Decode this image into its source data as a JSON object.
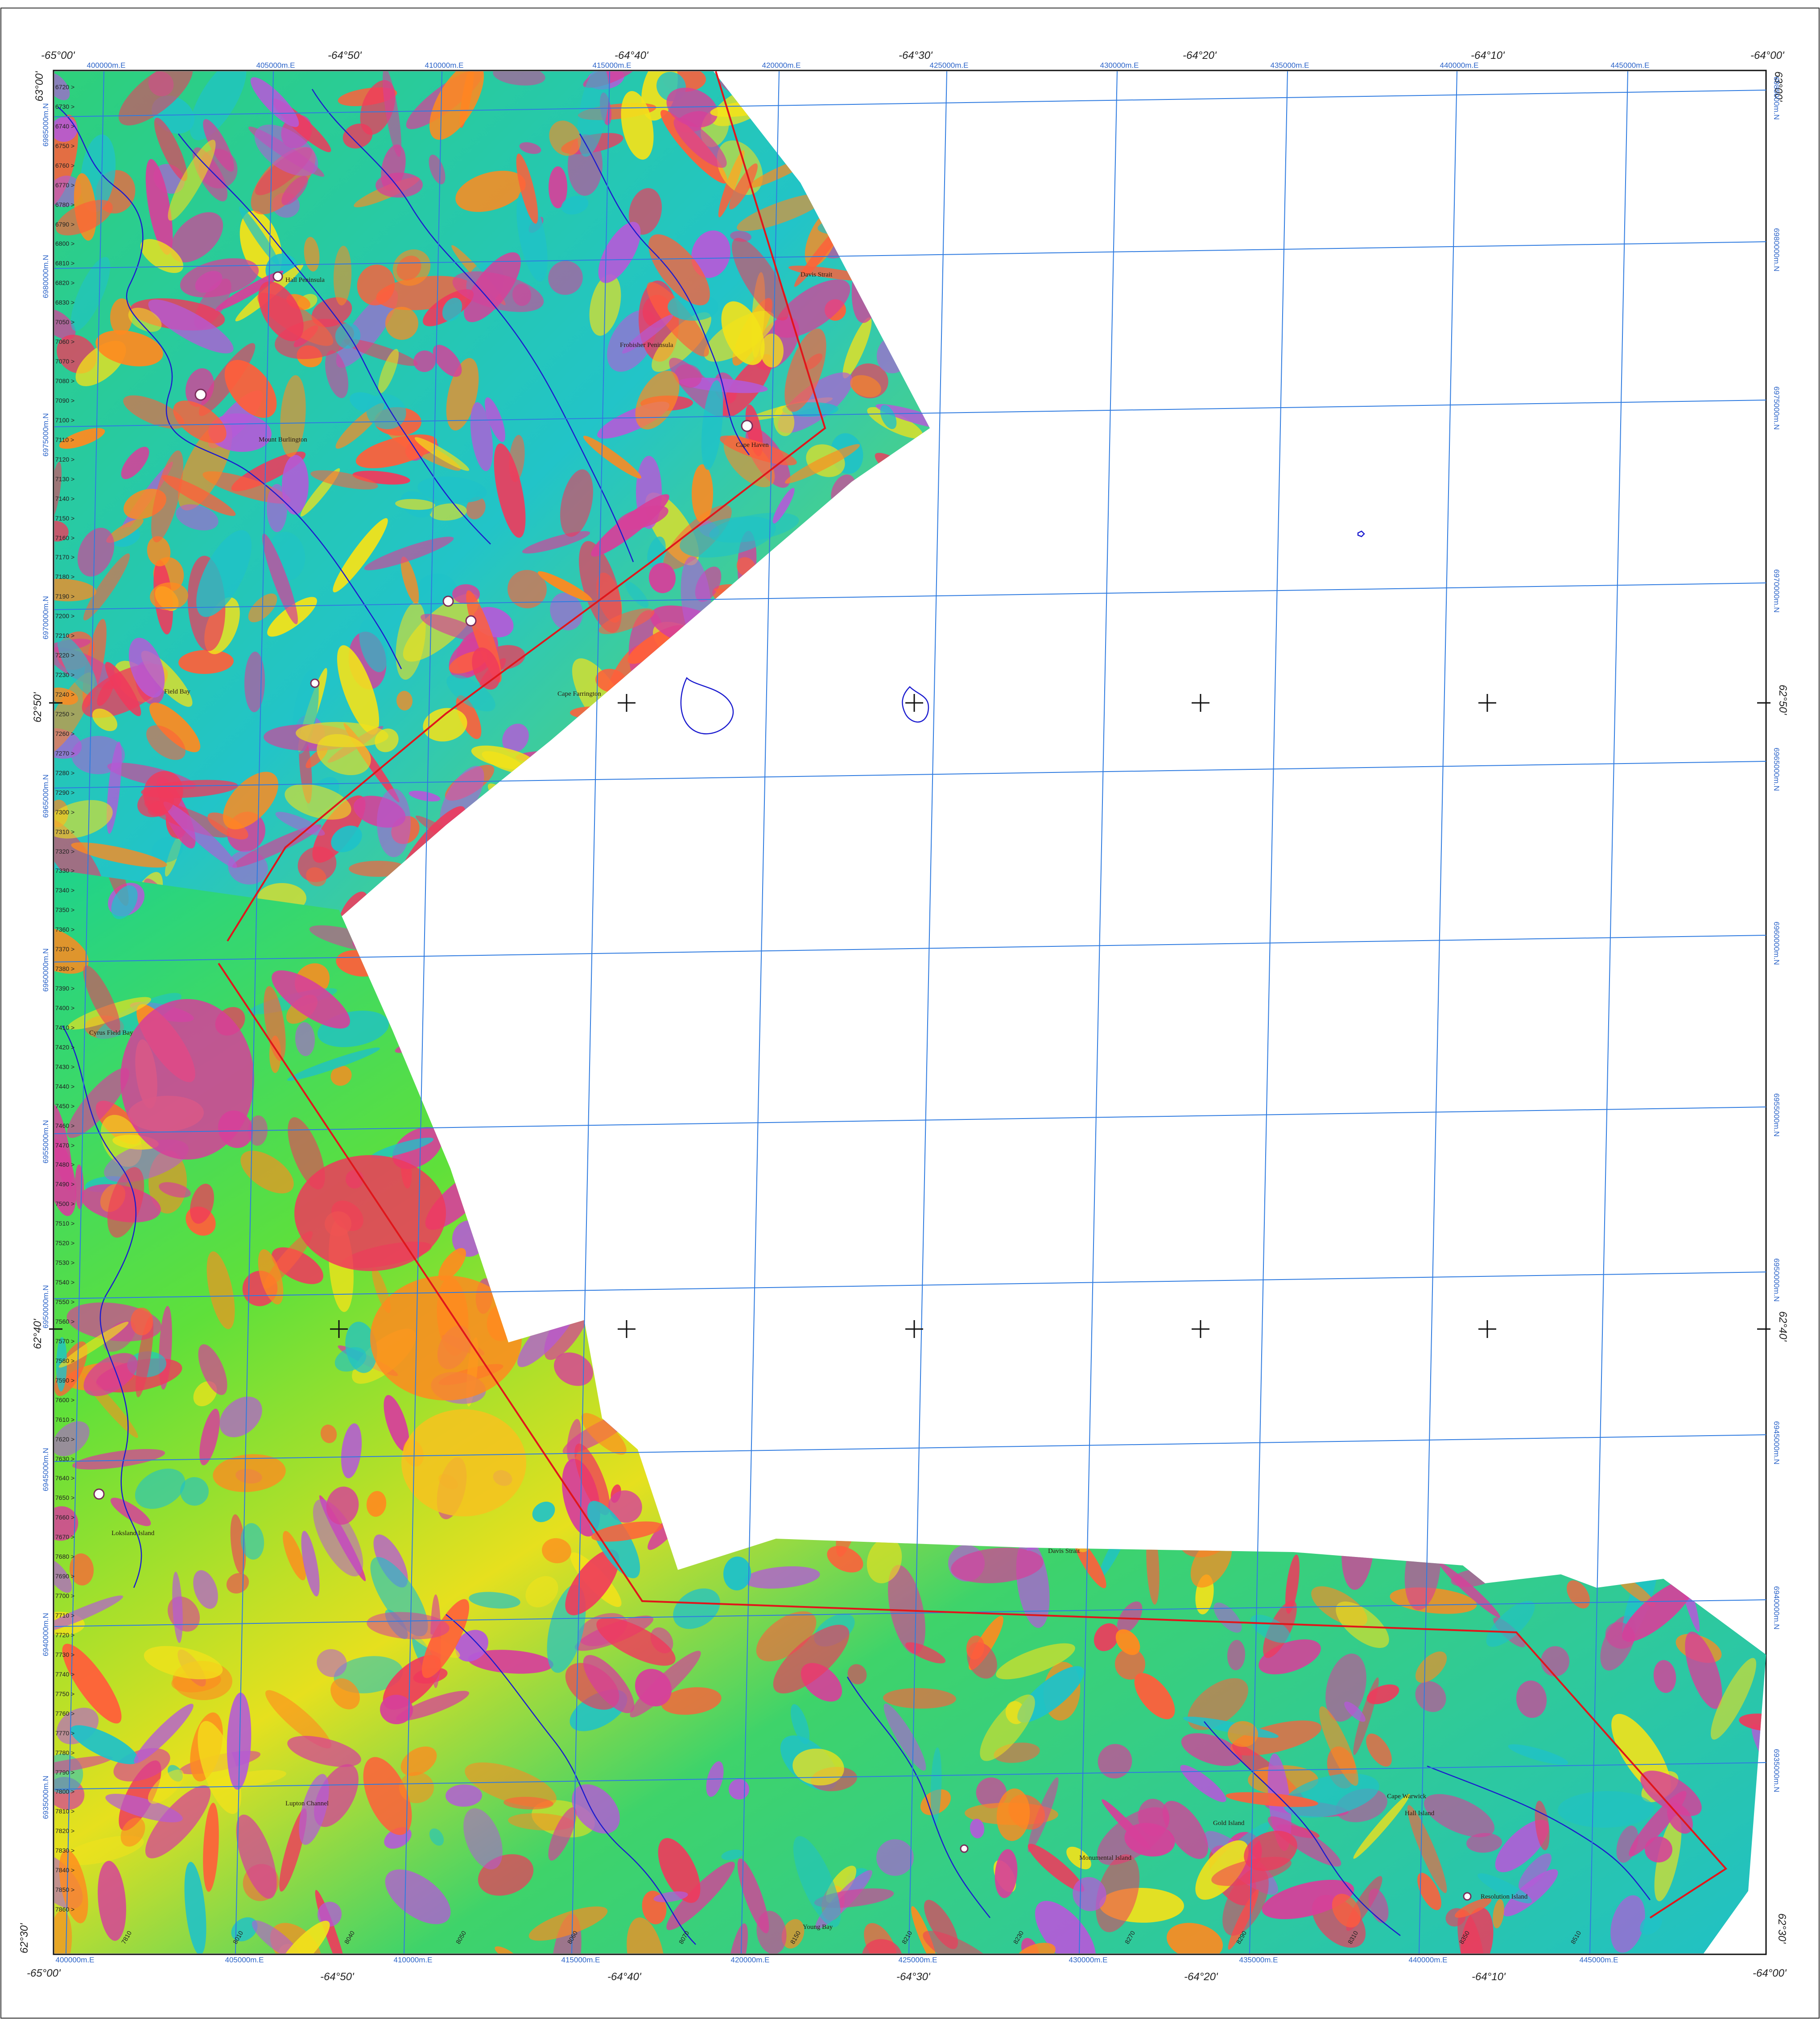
{
  "map": {
    "corner_labels": {
      "top_left_lon": "-65°00'",
      "top_right_lon": "-64°00'",
      "bottom_left_lon": "-65°00'",
      "bottom_right_lon": "-64°00'",
      "top_left_lat": "63°00'",
      "top_right_lat": "63°00'",
      "bottom_left_lat": "62°30'",
      "bottom_right_lat": "62°30'"
    },
    "longitude_labels": [
      "-64°50'",
      "-64°40'",
      "-64°30'",
      "-64°20'",
      "-64°10'"
    ],
    "latitude_labels": [
      "62°50'",
      "62°40'"
    ],
    "easting_labels": [
      "400000m.E",
      "405000m.E",
      "410000m.E",
      "415000m.E",
      "420000m.E",
      "425000m.E",
      "430000m.E",
      "435000m.E",
      "440000m.E",
      "445000m.E"
    ],
    "northing_labels_left": [
      "6985000m.N",
      "6980000m.N",
      "6975000m.N",
      "6970000m.N",
      "6965000m.N",
      "6960000m.N",
      "6955000m.N",
      "6950000m.N",
      "6945000m.N",
      "6940000m.N",
      "6935000m.N"
    ],
    "northing_labels_right": [
      "6985000m.N",
      "6980000m.N",
      "6975000m.N",
      "6970000m.N",
      "6965000m.N",
      "6960000m.N",
      "6955000m.N",
      "6950000m.N",
      "6945000m.N",
      "6940000m.N",
      "6935000m.N"
    ],
    "place_names": [
      "Hall Peninsula",
      "Davis Strait",
      "Mount Burlington",
      "Cape Haven",
      "Frobisher Peninsula",
      "Cape Farrington",
      "Field Bay",
      "Cyrus Field Bay",
      "Loksland Island",
      "Davis Strait",
      "Lupton Channel",
      "Young Bay",
      "Monumental Island",
      "Gold Island",
      "Cape Warwick",
      "Hall Island",
      "Resolution Island"
    ],
    "line_labels_left": [
      "6720",
      "6730",
      "6740",
      "6750",
      "6760",
      "6770",
      "6780",
      "6790",
      "6800",
      "6810",
      "6820",
      "6830",
      "7050",
      "7060",
      "7070",
      "7080",
      "7090",
      "7100",
      "7110",
      "7120",
      "7130",
      "7140",
      "7150",
      "7160",
      "7170",
      "7180",
      "7190",
      "7200",
      "7210",
      "7220",
      "7230",
      "7240",
      "7250",
      "7260",
      "7270",
      "7280",
      "7290",
      "7300",
      "7310",
      "7320",
      "7330",
      "7340",
      "7350",
      "7360",
      "7370",
      "7380",
      "7390",
      "7400",
      "7410",
      "7420",
      "7430",
      "7440",
      "7450",
      "7460",
      "7470",
      "7480",
      "7490",
      "7500",
      "7510",
      "7520",
      "7530",
      "7540",
      "7550",
      "7560",
      "7570",
      "7580",
      "7590",
      "7600",
      "7610",
      "7620",
      "7630",
      "7640",
      "7650",
      "7660",
      "7670",
      "7680",
      "7690",
      "7700",
      "7710",
      "7720",
      "7730",
      "7740",
      "7750",
      "7760",
      "7770",
      "7780",
      "7790",
      "7800",
      "7810",
      "7820",
      "7830",
      "7840",
      "7850",
      "7860"
    ],
    "line_labels_bottom": [
      "7810",
      "8010",
      "8040",
      "8050",
      "8060",
      "8070",
      "8150",
      "8210",
      "8230",
      "8270",
      "8290",
      "8310",
      "8350",
      "8510"
    ],
    "colors": {
      "survey_boundary": "#e0161b",
      "coastline": "#1c1ccf",
      "grid": "#2f7be0",
      "high": "#d6409a",
      "mid": "#f2e21a",
      "low": "#1fc2c8"
    }
  }
}
